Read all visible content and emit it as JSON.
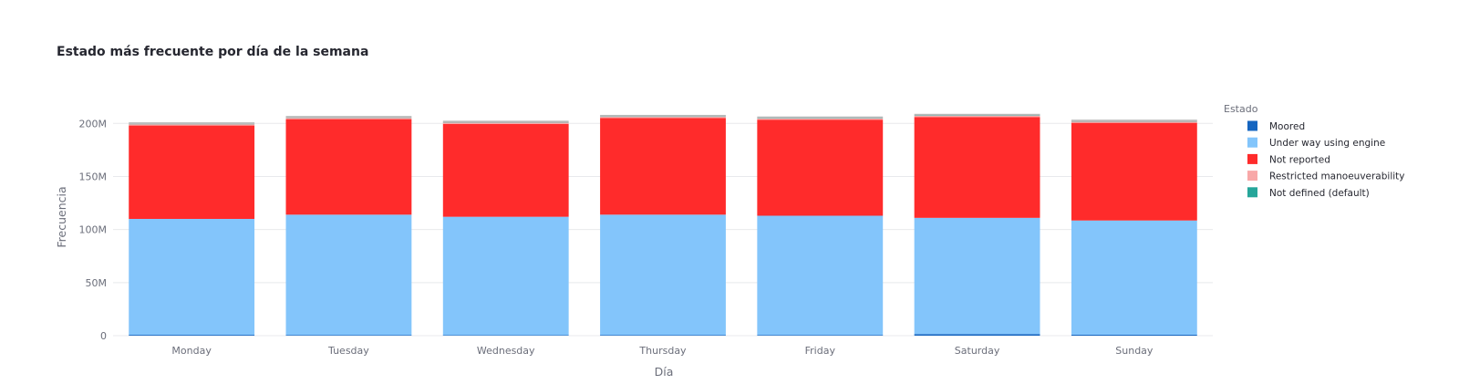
{
  "chart_data": {
    "type": "bar",
    "stacked": true,
    "title": "Estado más frecuente por día de la semana",
    "xlabel": "Día",
    "ylabel": "Frecuencia",
    "ylim": [
      0,
      220000000
    ],
    "yticks": [
      0,
      50000000,
      100000000,
      150000000,
      200000000
    ],
    "ytick_labels": [
      "0",
      "50M",
      "100M",
      "150M",
      "200M"
    ],
    "categories": [
      "Monday",
      "Tuesday",
      "Wednesday",
      "Thursday",
      "Friday",
      "Saturday",
      "Sunday"
    ],
    "legend": {
      "title": "Estado",
      "placement": "right"
    },
    "grid": true,
    "series": [
      {
        "name": "Moored",
        "color": "#1565c0",
        "values": [
          800000,
          700000,
          600000,
          700000,
          700000,
          1500000,
          900000
        ]
      },
      {
        "name": "Under way using engine",
        "color": "#83c5fb",
        "values": [
          109200000,
          113300000,
          111400000,
          113300000,
          112300000,
          109500000,
          107600000
        ]
      },
      {
        "name": "Not reported",
        "color": "#ff2b2b",
        "values": [
          88000000,
          90000000,
          87500000,
          91000000,
          90500000,
          95000000,
          92000000
        ]
      },
      {
        "name": "Restricted manoeuverability",
        "color": "#f8a8a8",
        "values": [
          1200000,
          1200000,
          1200000,
          1200000,
          1200000,
          1200000,
          1200000
        ]
      },
      {
        "name": "Not defined (default)",
        "color": "#26a69a",
        "values": [
          300000,
          300000,
          300000,
          300000,
          300000,
          300000,
          300000
        ]
      },
      {
        "name": "",
        "color": "#b9b9b9",
        "values": [
          1500000,
          1500000,
          1500000,
          1500000,
          1500000,
          1500000,
          1500000
        ]
      }
    ]
  }
}
